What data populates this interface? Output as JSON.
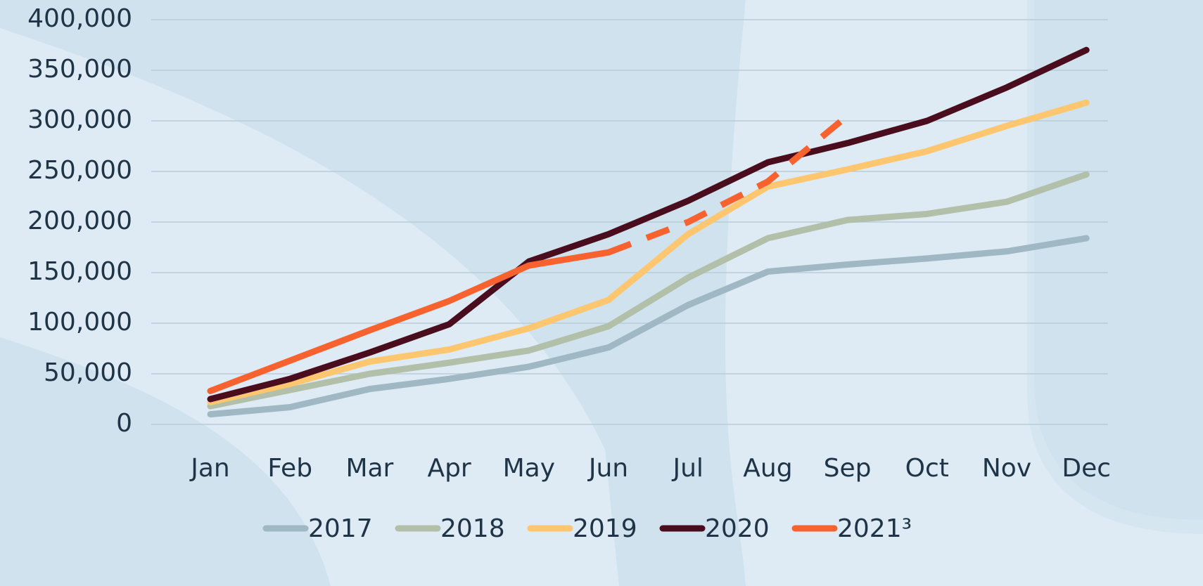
{
  "chart_data": {
    "type": "line",
    "categories": [
      "Jan",
      "Feb",
      "Mar",
      "Apr",
      "May",
      "Jun",
      "Jul",
      "Aug",
      "Sep",
      "Oct",
      "Nov",
      "Dec"
    ],
    "series": [
      {
        "name": "2017",
        "color": "#9fb8c4",
        "values": [
          10000,
          17000,
          35000,
          45000,
          57000,
          76000,
          118000,
          151000,
          158000,
          164000,
          171000,
          184000
        ]
      },
      {
        "name": "2018",
        "color": "#b2bfa9",
        "values": [
          18000,
          34000,
          50000,
          61000,
          73000,
          97000,
          145000,
          184000,
          202000,
          208000,
          220000,
          247000
        ]
      },
      {
        "name": "2019",
        "color": "#fdc66f",
        "values": [
          22000,
          40000,
          62000,
          74000,
          95000,
          123000,
          188000,
          235000,
          252000,
          270000,
          295000,
          318000
        ]
      },
      {
        "name": "2020",
        "color": "#4a0d1e",
        "values": [
          25000,
          45000,
          71000,
          99000,
          161000,
          188000,
          221000,
          259000,
          278000,
          300000,
          333000,
          370000
        ]
      },
      {
        "name": "2021³",
        "color": "#f8622f",
        "values": [
          33000,
          63000,
          93000,
          122000,
          157000,
          170000,
          200000,
          240000,
          305000,
          null,
          null,
          null
        ],
        "dashed_after": 5
      }
    ],
    "ylim": [
      0,
      400000
    ],
    "yticks": [
      0,
      {
        "value": 50000,
        "label": "50,000"
      },
      {
        "value": 100000,
        "label": "100,000"
      },
      {
        "value": 150000,
        "label": "150,000"
      },
      {
        "value": 200000,
        "label": "200,000"
      },
      {
        "value": 250000,
        "label": "250,000"
      },
      {
        "value": 300000,
        "label": "300,000"
      },
      {
        "value": 350000,
        "label": "350,000"
      },
      {
        "value": 400000,
        "label": "400,000"
      }
    ],
    "grid": true,
    "legend": "bottom"
  }
}
